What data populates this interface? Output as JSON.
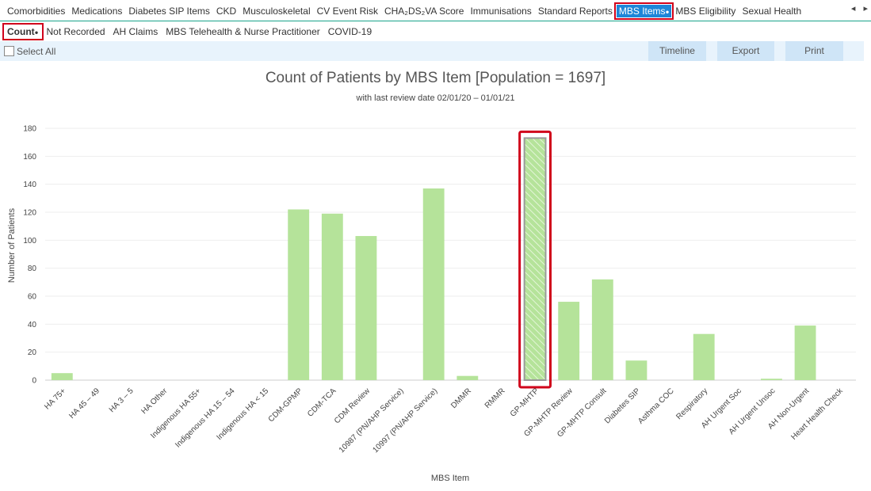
{
  "tabs": [
    "Comorbidities",
    "Medications",
    "Diabetes SIP Items",
    "CKD",
    "Musculoskeletal",
    "CV Event Risk",
    "CHA₂DS₂VA Score",
    "Immunisations",
    "Standard Reports",
    "MBS Items",
    "MBS Eligibility",
    "Sexual Health"
  ],
  "active_tab_index": 9,
  "active_tab_marker": "●",
  "scroll_left": "◂",
  "scroll_right": "▸",
  "subtabs": [
    "Count",
    "Not Recorded",
    "AH Claims",
    "MBS Telehealth & Nurse Practitioner",
    "COVID-19"
  ],
  "active_subtab_index": 0,
  "toolbar": {
    "select_all": "Select All",
    "timeline": "Timeline",
    "export": "Export",
    "print": "Print"
  },
  "chart_data": {
    "type": "bar",
    "title": "Count of Patients by MBS Item [Population = 1697]",
    "subtitle": "with last review date 02/01/20 – 01/01/21",
    "xlabel": "MBS Item",
    "ylabel": "Number of Patients",
    "ylim": [
      0,
      180
    ],
    "yticks": [
      0,
      20,
      40,
      60,
      80,
      100,
      120,
      140,
      160,
      180
    ],
    "grid": true,
    "categories": [
      "HA 75+",
      "HA 45 – 49",
      "HA 3 – 5",
      "HA Other",
      "Indigenous HA 55+",
      "Indigenous HA 15 – 54",
      "Indigenous HA < 15",
      "CDM-GPMP",
      "CDM-TCA",
      "CDM Review",
      "10987 (PN/AHP Service)",
      "10997 (PN/AHP Service)",
      "DMMR",
      "RMMR",
      "GP-MHTP",
      "GP-MHTP Review",
      "GP-MHTP Consult",
      "Diabetes SIP",
      "Asthma COC",
      "Respiratory",
      "AH Urgent Soc",
      "AH Urgent Unsoc",
      "AH Non-Urgent",
      "Heart Health Check"
    ],
    "values": [
      5,
      0,
      0,
      0,
      0,
      0,
      0,
      122,
      119,
      103,
      0,
      137,
      3,
      0,
      173,
      56,
      72,
      14,
      0,
      33,
      0,
      1,
      39,
      0
    ],
    "highlight_index": 14,
    "bar_color": "#b5e39a",
    "highlight_outline": "#d0021b"
  }
}
